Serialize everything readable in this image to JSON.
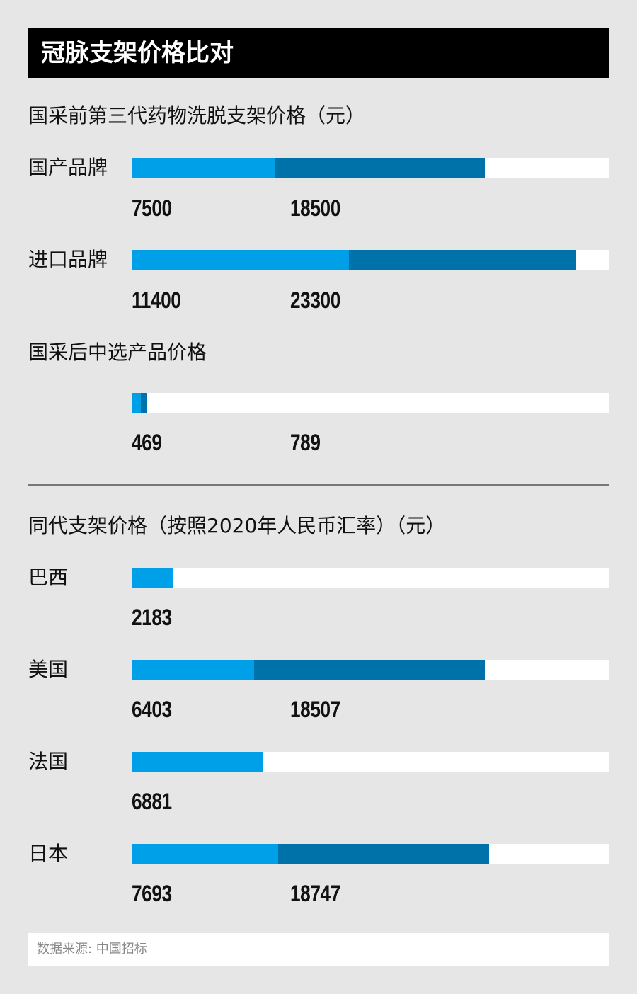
{
  "title": "冠脉支架价格比对",
  "source": "数据来源: 中国招标",
  "colors": {
    "light": "#00a0e9",
    "dark": "#0072aa",
    "track": "#ffffff",
    "title_bg": "#000000",
    "background": "#e6e6e6"
  },
  "chart_data": [
    {
      "type": "bar",
      "orientation": "horizontal",
      "title": "国采前第三代药物洗脱支架价格（元）",
      "rows": [
        {
          "label": "国产品牌",
          "values": [
            7500,
            18500
          ]
        },
        {
          "label": "进口品牌",
          "values": [
            11400,
            23300
          ]
        }
      ]
    },
    {
      "type": "bar",
      "orientation": "horizontal",
      "title": "国采后中选产品价格",
      "rows": [
        {
          "label": "",
          "values": [
            469,
            789
          ]
        }
      ]
    },
    {
      "type": "bar",
      "orientation": "horizontal",
      "title": "同代支架价格（按照2020年人民币汇率）（元）",
      "rows": [
        {
          "label": "巴西",
          "values": [
            2183
          ]
        },
        {
          "label": "美国",
          "values": [
            6403,
            18507
          ]
        },
        {
          "label": "法国",
          "values": [
            6881
          ]
        },
        {
          "label": "日本",
          "values": [
            7693,
            18747
          ]
        }
      ]
    }
  ]
}
